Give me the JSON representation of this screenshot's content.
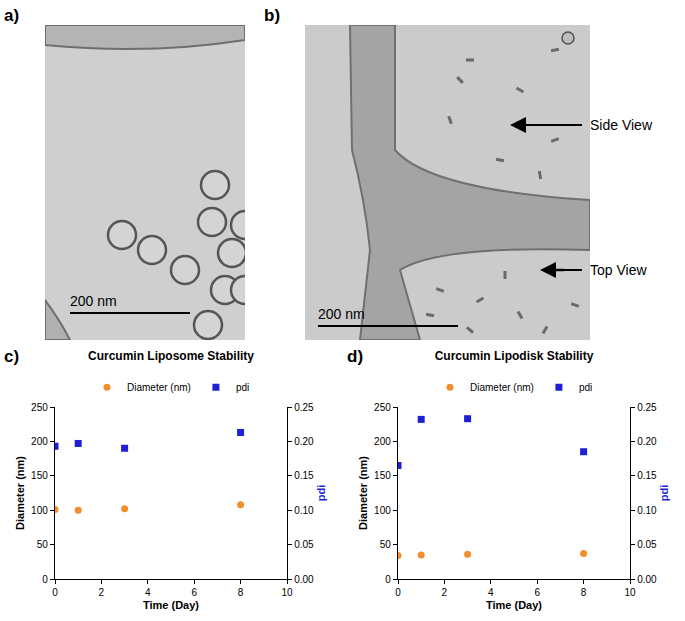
{
  "panels": [
    {
      "label": "a)",
      "scale_bar": "200 nm"
    },
    {
      "label": "b)",
      "scale_bar": "200 nm",
      "annotations": [
        "Side View",
        "Top View"
      ]
    }
  ],
  "chart_data": [
    {
      "panel_label": "c)",
      "type": "scatter",
      "title": "Curcumin Liposome Stability",
      "x_label": "Time (Day)",
      "y_label": "Diameter (nm)",
      "y2_label": "pdi",
      "x": [
        0,
        1,
        3,
        8
      ],
      "series": [
        {
          "name": "Diameter (nm)",
          "color": "#f28e2b",
          "marker": "circle",
          "values": [
            101,
            100,
            102,
            108
          ]
        },
        {
          "name": "pdi",
          "color": "#1f1fd6",
          "marker": "square",
          "axis": "y2",
          "values": [
            0.193,
            0.197,
            0.19,
            0.213
          ]
        }
      ],
      "xlim": [
        0,
        10
      ],
      "xticks": [
        0,
        2,
        4,
        6,
        8,
        10
      ],
      "ylim": [
        0,
        250
      ],
      "yticks": [
        0,
        50,
        100,
        150,
        200,
        250
      ],
      "y2lim": [
        0,
        0.25
      ],
      "y2ticks": [
        {
          "value": 0,
          "label": "0.00"
        },
        {
          "value": 0.05,
          "label": "0.05"
        },
        {
          "value": 0.1,
          "label": "0.10"
        },
        {
          "value": 0.15,
          "label": "0.15"
        },
        {
          "value": 0.2,
          "label": "0.20"
        },
        {
          "value": 0.25,
          "label": "0.25"
        }
      ],
      "legend": "top",
      "grid": false
    },
    {
      "panel_label": "d)",
      "type": "scatter",
      "title": "Curcumin Lipodisk Stability",
      "x_label": "Time (Day)",
      "y_label": "Diameter (nm)",
      "y2_label": "pdi",
      "x": [
        0,
        1,
        3,
        8
      ],
      "series": [
        {
          "name": "Diameter (nm)",
          "color": "#f28e2b",
          "marker": "circle",
          "values": [
            34,
            35,
            36,
            37
          ]
        },
        {
          "name": "pdi",
          "color": "#1f1fd6",
          "marker": "square",
          "axis": "y2",
          "values": [
            0.165,
            0.232,
            0.233,
            0.185
          ]
        }
      ],
      "xlim": [
        0,
        10
      ],
      "xticks": [
        0,
        2,
        4,
        6,
        8,
        10
      ],
      "ylim": [
        0,
        250
      ],
      "yticks": [
        0,
        50,
        100,
        150,
        200,
        250
      ],
      "y2lim": [
        0,
        0.25
      ],
      "y2ticks": [
        {
          "value": 0,
          "label": "0.00"
        },
        {
          "value": 0.05,
          "label": "0.05"
        },
        {
          "value": 0.1,
          "label": "0.10"
        },
        {
          "value": 0.15,
          "label": "0.15"
        },
        {
          "value": 0.2,
          "label": "0.20"
        },
        {
          "value": 0.25,
          "label": "0.25"
        }
      ],
      "legend": "top",
      "grid": false
    }
  ]
}
